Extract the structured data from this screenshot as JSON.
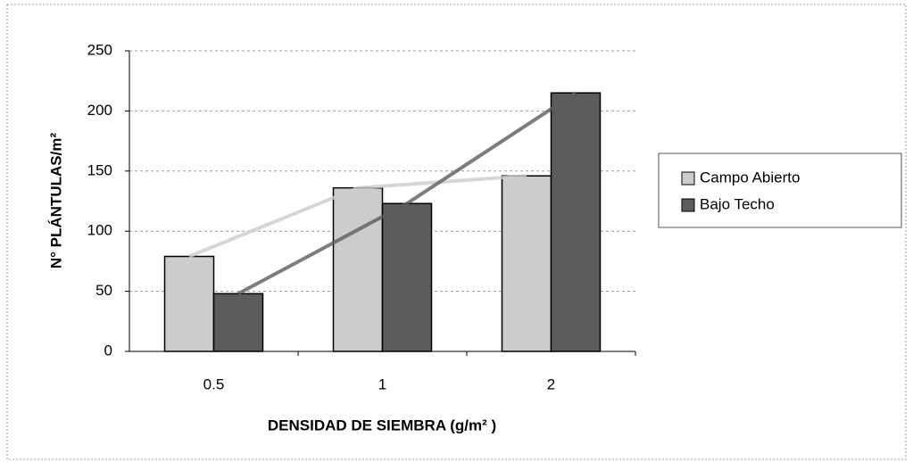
{
  "chart_data": {
    "type": "bar",
    "x_label": "DENSIDAD DE SIEMBRA (g/m² )",
    "y_label": "N° PLÁNTULAS/m²",
    "categories": [
      "0.5",
      "1",
      "2"
    ],
    "series": [
      {
        "name": "Campo Abierto",
        "color": "#cccccc",
        "values": [
          79,
          136,
          146
        ]
      },
      {
        "name": "Bajo Techo",
        "color": "#5c5c5c",
        "values": [
          48,
          123,
          215
        ]
      }
    ],
    "ylim": [
      0,
      250
    ],
    "yticks": [
      0,
      50,
      100,
      150,
      200,
      250
    ],
    "grid": true,
    "legend": "right"
  }
}
